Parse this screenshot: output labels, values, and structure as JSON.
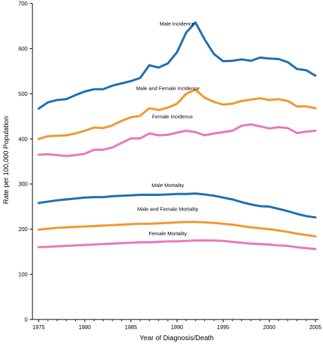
{
  "chart_data": {
    "type": "line",
    "xlabel": "Year of Diagnosis/Death",
    "ylabel": "Rate per 100,000 Population",
    "xlim": [
      1975,
      2005
    ],
    "ylim": [
      0,
      700
    ],
    "x_ticks": [
      1975,
      1980,
      1985,
      1990,
      1995,
      2000,
      2005
    ],
    "y_ticks": [
      0,
      100,
      200,
      300,
      400,
      500,
      600,
      700
    ],
    "grid": false,
    "x": [
      1975,
      1976,
      1977,
      1978,
      1979,
      1980,
      1981,
      1982,
      1983,
      1984,
      1985,
      1986,
      1987,
      1988,
      1989,
      1990,
      1991,
      1992,
      1993,
      1994,
      1995,
      1996,
      1997,
      1998,
      1999,
      2000,
      2001,
      2002,
      2003,
      2004,
      2005
    ],
    "series": [
      {
        "name": "Male Incidence",
        "color": "#1f6fb2",
        "values": [
          467,
          481,
          486,
          488,
          497,
          505,
          510,
          510,
          518,
          523,
          528,
          535,
          563,
          558,
          567,
          592,
          636,
          658,
          620,
          588,
          572,
          573,
          576,
          573,
          580,
          578,
          577,
          570,
          555,
          552,
          540
        ]
      },
      {
        "name": "Male and Female Incidence",
        "color": "#ee9a2e",
        "values": [
          400,
          406,
          407,
          408,
          412,
          418,
          425,
          424,
          430,
          440,
          448,
          451,
          468,
          464,
          469,
          478,
          500,
          509,
          491,
          482,
          476,
          478,
          484,
          487,
          490,
          486,
          488,
          484,
          472,
          472,
          468
        ]
      },
      {
        "name": "Female Incidence",
        "color": "#e779b8",
        "values": [
          365,
          366,
          364,
          362,
          364,
          367,
          376,
          376,
          381,
          391,
          401,
          401,
          412,
          408,
          409,
          414,
          418,
          415,
          408,
          412,
          415,
          418,
          429,
          432,
          428,
          423,
          426,
          424,
          413,
          416,
          418
        ]
      },
      {
        "name": "Male Mortality",
        "color": "#1f6fb2",
        "values": [
          258,
          261,
          264,
          266,
          268,
          270,
          271,
          271,
          273,
          274,
          275,
          276,
          276,
          276,
          277,
          278,
          278,
          279,
          277,
          274,
          270,
          266,
          260,
          255,
          251,
          250,
          245,
          240,
          234,
          229,
          226
        ]
      },
      {
        "name": "Male and Female Mortality",
        "color": "#ee9a2e",
        "values": [
          199,
          201,
          203,
          204,
          205,
          206,
          207,
          208,
          209,
          210,
          211,
          212,
          212,
          213,
          214,
          215,
          216,
          216,
          215,
          214,
          212,
          210,
          207,
          204,
          202,
          200,
          197,
          194,
          190,
          187,
          184
        ]
      },
      {
        "name": "Female Mortality",
        "color": "#e779b8",
        "values": [
          160,
          161,
          162,
          163,
          164,
          165,
          166,
          167,
          168,
          169,
          170,
          171,
          171,
          172,
          173,
          173,
          174,
          175,
          175,
          175,
          174,
          172,
          170,
          168,
          167,
          166,
          164,
          163,
          160,
          158,
          156
        ]
      }
    ]
  }
}
